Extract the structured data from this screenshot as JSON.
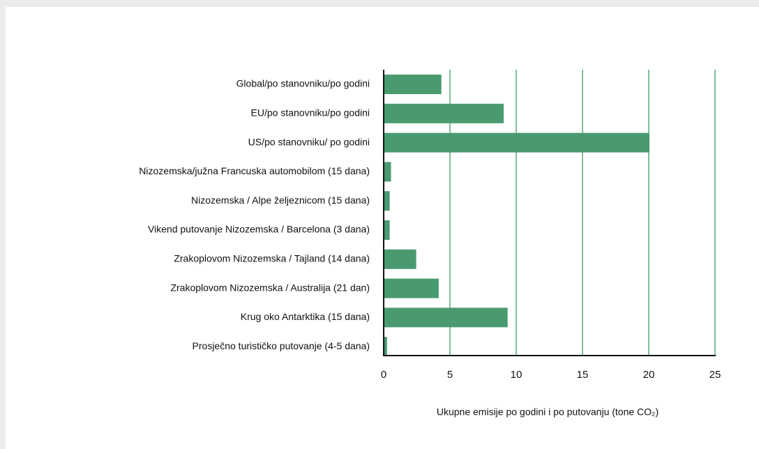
{
  "chart_data": {
    "type": "barh",
    "categories": [
      "Global/po stanovniku/po godini",
      "EU/po stanovniku/po godini",
      "US/po stanovniku/ po godini",
      "Nizozemska/južna Francuska automobilom (15 dana)",
      "Nizozemska / Alpe željeznicom (15 dana)",
      "Vikend putovanje Nizozemska / Barcelona (3 dana)",
      "Zrakoplovom Nizozemska  / Tajland (14 dana)",
      "Zrakoplovom Nizozemska  / Australija (21 dan)",
      "Krug oko Antarktika (15 dana)",
      "Prosječno turističko putovanje (4-5 dana)"
    ],
    "values": [
      4.3,
      9.0,
      20,
      0.5,
      0.4,
      0.4,
      2.4,
      4.1,
      9.3,
      0.2
    ],
    "color": "#4a9a70",
    "xlabel": "Ukupne emisije po godini i po putovanju (tone CO₂)",
    "xlim": [
      0,
      25
    ],
    "xticks": [
      0,
      5,
      10,
      15,
      20,
      25
    ],
    "grid": true,
    "grid_color": "#7fbf9c"
  }
}
